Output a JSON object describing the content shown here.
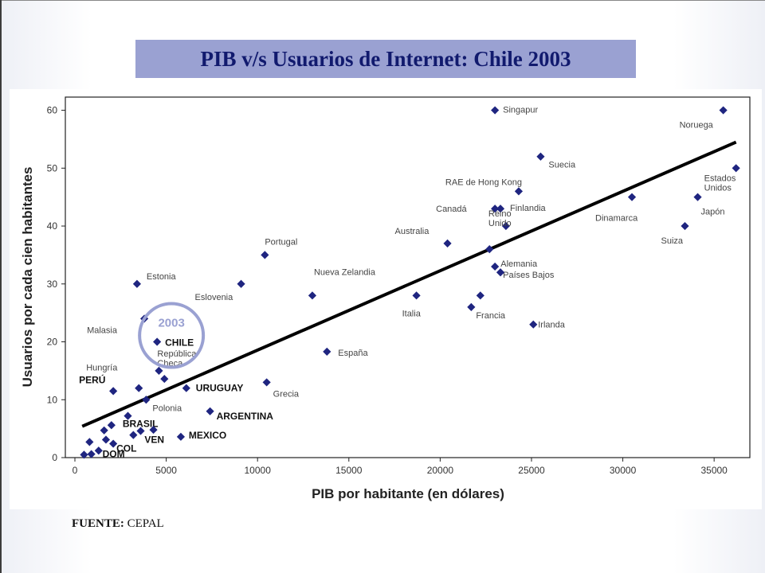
{
  "slide": {
    "title": "PIB v/s Usuarios de Internet: Chile 2003",
    "source_label": "FUENTE:",
    "source_value": "CEPAL",
    "highlight_label": "2003"
  },
  "colors": {
    "title_bg": "#9aa1d2",
    "title_text": "#111a6e",
    "point": "#1f2580",
    "trend": "#000000",
    "highlight": "#9aa1d2"
  },
  "chart_data": {
    "type": "scatter",
    "xlabel": "PIB por habitante (en dólares)",
    "ylabel": "Usuarios por cada cien habitantes",
    "xlim": [
      0,
      37000
    ],
    "ylim": [
      0,
      62
    ],
    "xticks": [
      0,
      5000,
      10000,
      15000,
      20000,
      25000,
      30000,
      35000
    ],
    "xtick_labels": [
      "0",
      "5000",
      "10000",
      "15000",
      "20000",
      "25000",
      "30000",
      "35000"
    ],
    "yticks": [
      0,
      10,
      20,
      30,
      40,
      50,
      60
    ],
    "ytick_labels": [
      "0",
      "10",
      "20",
      "30",
      "40",
      "50",
      "60"
    ],
    "grid": false,
    "trendline": {
      "x": [
        400,
        36200
      ],
      "y": [
        5.4,
        54.5
      ]
    },
    "points": [
      {
        "label": "Singapur",
        "x": 23000,
        "y": 60,
        "bold": false
      },
      {
        "label": "Noruega",
        "x": 35500,
        "y": 60,
        "bold": false
      },
      {
        "label": "Suecia",
        "x": 25500,
        "y": 52,
        "bold": false
      },
      {
        "label": "Estados Unidos",
        "x": 36200,
        "y": 50,
        "bold": false
      },
      {
        "label": "RAE de Hong Kong",
        "x": 24300,
        "y": 46,
        "bold": false
      },
      {
        "label": "Dinamarca",
        "x": 30500,
        "y": 45,
        "bold": false
      },
      {
        "label": "Japón",
        "x": 34100,
        "y": 45,
        "bold": false
      },
      {
        "label": "Canadá",
        "x": 23000,
        "y": 43,
        "bold": false
      },
      {
        "label": "Finlandia",
        "x": 23300,
        "y": 43,
        "bold": false
      },
      {
        "label": "Reino Unido",
        "x": 23600,
        "y": 40,
        "bold": false
      },
      {
        "label": "Suiza",
        "x": 33400,
        "y": 40,
        "bold": false
      },
      {
        "label": "Australia",
        "x": 20400,
        "y": 37,
        "bold": false
      },
      {
        "label": "Alemania",
        "x": 22700,
        "y": 36,
        "bold": false
      },
      {
        "label": "Portugal",
        "x": 10400,
        "y": 35,
        "bold": false
      },
      {
        "label": "Países Bajos",
        "x": 23000,
        "y": 33,
        "bold": false
      },
      {
        "label": "",
        "x": 23300,
        "y": 32,
        "bold": false
      },
      {
        "label": "Estonia",
        "x": 3400,
        "y": 30,
        "bold": false
      },
      {
        "label": "Eslovenia",
        "x": 9100,
        "y": 30,
        "bold": false
      },
      {
        "label": "Nueva Zelandia",
        "x": 13000,
        "y": 28,
        "bold": false
      },
      {
        "label": "Italia",
        "x": 18700,
        "y": 28,
        "bold": false
      },
      {
        "label": "",
        "x": 22200,
        "y": 28,
        "bold": false
      },
      {
        "label": "Francia",
        "x": 21700,
        "y": 26,
        "bold": false
      },
      {
        "label": "Malasia",
        "x": 3800,
        "y": 24,
        "bold": false
      },
      {
        "label": "Irlanda",
        "x": 25100,
        "y": 23,
        "bold": false
      },
      {
        "label": "CHILE",
        "x": 4500,
        "y": 20,
        "bold": true
      },
      {
        "label": "España",
        "x": 13800,
        "y": 18.3,
        "bold": false
      },
      {
        "label": "República Checa",
        "x": 4600,
        "y": 15,
        "bold": false
      },
      {
        "label": "",
        "x": 4900,
        "y": 13.6,
        "bold": false
      },
      {
        "label": "Grecia",
        "x": 10500,
        "y": 13,
        "bold": false
      },
      {
        "label": "Hungría",
        "x": 3500,
        "y": 12,
        "bold": false
      },
      {
        "label": "URUGUAY",
        "x": 6100,
        "y": 12,
        "bold": true
      },
      {
        "label": "PERÚ",
        "x": 2100,
        "y": 11.5,
        "bold": true
      },
      {
        "label": "Polonia",
        "x": 3900,
        "y": 10,
        "bold": false
      },
      {
        "label": "ARGENTINA",
        "x": 7400,
        "y": 8,
        "bold": true
      },
      {
        "label": "",
        "x": 2900,
        "y": 7.2,
        "bold": false
      },
      {
        "label": "BRASIL",
        "x": 2000,
        "y": 5.6,
        "bold": true
      },
      {
        "label": "",
        "x": 1600,
        "y": 4.7,
        "bold": false
      },
      {
        "label": "",
        "x": 3600,
        "y": 4.6,
        "bold": false
      },
      {
        "label": "",
        "x": 4300,
        "y": 4.8,
        "bold": false
      },
      {
        "label": "VEN",
        "x": 3200,
        "y": 3.9,
        "bold": true
      },
      {
        "label": "MEXICO",
        "x": 5800,
        "y": 3.6,
        "bold": true
      },
      {
        "label": "",
        "x": 1700,
        "y": 3.1,
        "bold": false
      },
      {
        "label": "",
        "x": 800,
        "y": 2.7,
        "bold": false
      },
      {
        "label": "COL",
        "x": 2100,
        "y": 2.4,
        "bold": true
      },
      {
        "label": "",
        "x": 1300,
        "y": 1.2,
        "bold": false
      },
      {
        "label": "",
        "x": 500,
        "y": 0.5,
        "bold": false
      },
      {
        "label": "DOM",
        "x": 900,
        "y": 0.6,
        "bold": true
      }
    ]
  }
}
